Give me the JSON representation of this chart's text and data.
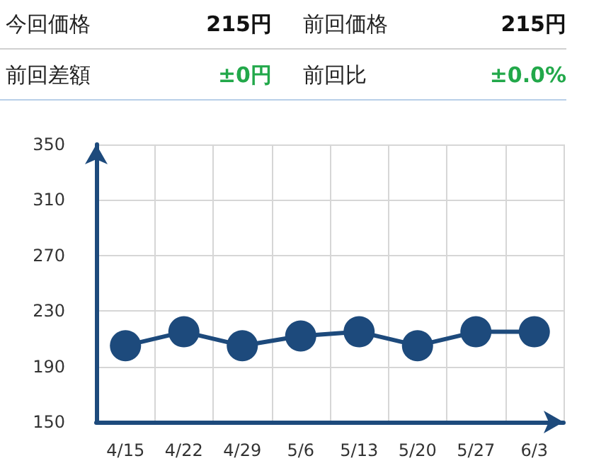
{
  "chart_data": [
    {
      "type": "other",
      "annotations": [
        "今回価格",
        "215円",
        "前回価格",
        "215円",
        "前回差額",
        "±0円",
        "前回比",
        "±0.0%"
      ]
    },
    {
      "type": "line",
      "categories": [
        "4/15",
        "4/22",
        "4/29",
        "5/6",
        "5/13",
        "5/20",
        "5/27",
        "6/3"
      ],
      "series": [
        {
          "color": "#1d4a7c",
          "values": [
            205,
            215,
            205,
            212,
            215,
            205,
            215,
            215
          ]
        }
      ],
      "ylim": [
        150,
        350
      ],
      "yticks": [
        150,
        190,
        230,
        270,
        310,
        350
      ],
      "grid": true,
      "marker": "circle",
      "line_style": "solid"
    }
  ]
}
